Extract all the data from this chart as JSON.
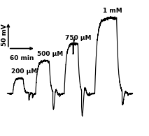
{
  "background_color": "#ffffff",
  "line_color": "#000000",
  "scale_bar_x_label": "60 min",
  "scale_bar_y_label": "50 mV",
  "labels": [
    "200 μM",
    "500 μM",
    "750 μM",
    "1 mM"
  ],
  "figsize": [
    2.13,
    1.95
  ],
  "dpi": 100,
  "xlim": [
    -8,
    310
  ],
  "ylim": [
    -28,
    62
  ]
}
